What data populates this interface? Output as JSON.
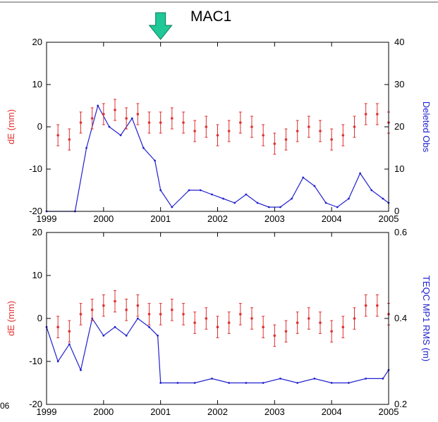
{
  "title": "MAC1",
  "side_text": "06",
  "colors": {
    "red": "#e03030",
    "blue": "#2020d0",
    "arrow": "#1fc896",
    "arrow_edge": "#0a7a55"
  },
  "chart_data": [
    {
      "type": "line",
      "title": "MAC1",
      "xlabel": "",
      "xlim": [
        1999,
        2005
      ],
      "x_ticks": [
        "1999",
        "2000",
        "2001",
        "2002",
        "2003",
        "2004",
        "2005"
      ],
      "ylabel": "dE (mm)",
      "ylim": [
        -20,
        20
      ],
      "y_ticks": [
        "-20",
        "-10",
        "0",
        "10",
        "20"
      ],
      "y2label": "Deleted Obs",
      "y2lim": [
        0,
        40
      ],
      "y2_ticks": [
        "0",
        "10",
        "20",
        "30",
        "40"
      ],
      "arrow_at": 2001.0,
      "series": [
        {
          "axis": "left",
          "style": "points-with-errorbars",
          "color": "#e03030",
          "x": [
            1999.2,
            1999.4,
            1999.6,
            1999.8,
            2000.0,
            2000.2,
            2000.4,
            2000.6,
            2000.8,
            2001.0,
            2001.2,
            2001.4,
            2001.6,
            2001.8,
            2002.0,
            2002.2,
            2002.4,
            2002.6,
            2002.8,
            2003.0,
            2003.2,
            2003.4,
            2003.6,
            2003.8,
            2004.0,
            2004.2,
            2004.4,
            2004.6,
            2004.8,
            2005.0
          ],
          "y": [
            -2,
            -3,
            1,
            2,
            3,
            4,
            2,
            3,
            1,
            1,
            2,
            1,
            -1,
            0,
            -2,
            -1,
            1,
            0,
            -2,
            -4,
            -3,
            -1,
            0,
            -1,
            -3,
            -2,
            0,
            3,
            3,
            1
          ]
        },
        {
          "axis": "right",
          "style": "line",
          "color": "#2020d0",
          "x": [
            1999.0,
            1999.5,
            1999.7,
            1999.9,
            2000.1,
            2000.3,
            2000.5,
            2000.7,
            2000.9,
            2001.0,
            2001.2,
            2001.5,
            2001.7,
            2001.9,
            2002.1,
            2002.3,
            2002.5,
            2002.7,
            2002.9,
            2003.1,
            2003.3,
            2003.5,
            2003.7,
            2003.9,
            2004.1,
            2004.3,
            2004.5,
            2004.7,
            2004.9,
            2005.0
          ],
          "y": [
            0,
            0,
            15,
            25,
            20,
            18,
            22,
            15,
            12,
            5,
            1,
            5,
            5,
            4,
            3,
            2,
            4,
            2,
            1,
            1,
            3,
            8,
            6,
            2,
            1,
            3,
            9,
            5,
            3,
            2
          ]
        }
      ]
    },
    {
      "type": "line",
      "title": "",
      "xlabel": "",
      "xlim": [
        1999,
        2005
      ],
      "x_ticks": [
        "1999",
        "2000",
        "2001",
        "2002",
        "2003",
        "2004",
        "2005"
      ],
      "ylabel": "dE (mm)",
      "ylim": [
        -20,
        20
      ],
      "y_ticks": [
        "-20",
        "-10",
        "0",
        "10",
        "20"
      ],
      "y2label": "TEQC MP1 RMS (m)",
      "y2lim": [
        0.2,
        0.6
      ],
      "y2_ticks": [
        "0.2",
        "0.4",
        "0.6"
      ],
      "series": [
        {
          "axis": "left",
          "style": "points-with-errorbars",
          "color": "#e03030",
          "x": [
            1999.2,
            1999.4,
            1999.6,
            1999.8,
            2000.0,
            2000.2,
            2000.4,
            2000.6,
            2000.8,
            2001.0,
            2001.2,
            2001.4,
            2001.6,
            2001.8,
            2002.0,
            2002.2,
            2002.4,
            2002.6,
            2002.8,
            2003.0,
            2003.2,
            2003.4,
            2003.6,
            2003.8,
            2004.0,
            2004.2,
            2004.4,
            2004.6,
            2004.8,
            2005.0
          ],
          "y": [
            -2,
            -3,
            1,
            2,
            3,
            4,
            2,
            3,
            1,
            1,
            2,
            1,
            -1,
            0,
            -2,
            -1,
            1,
            0,
            -2,
            -4,
            -3,
            -1,
            0,
            -1,
            -3,
            -2,
            0,
            3,
            3,
            1
          ]
        },
        {
          "axis": "right",
          "style": "line",
          "color": "#2020d0",
          "x": [
            1999.0,
            1999.2,
            1999.4,
            1999.6,
            1999.8,
            2000.0,
            2000.2,
            2000.4,
            2000.6,
            2000.8,
            2000.95,
            2001.0,
            2001.3,
            2001.6,
            2001.9,
            2002.2,
            2002.5,
            2002.8,
            2003.1,
            2003.4,
            2003.7,
            2004.0,
            2004.3,
            2004.6,
            2004.9,
            2005.0
          ],
          "y": [
            0.38,
            0.3,
            0.34,
            0.28,
            0.4,
            0.36,
            0.38,
            0.36,
            0.4,
            0.38,
            0.36,
            0.25,
            0.25,
            0.25,
            0.26,
            0.25,
            0.25,
            0.25,
            0.26,
            0.25,
            0.26,
            0.25,
            0.25,
            0.26,
            0.26,
            0.28
          ]
        }
      ]
    }
  ]
}
